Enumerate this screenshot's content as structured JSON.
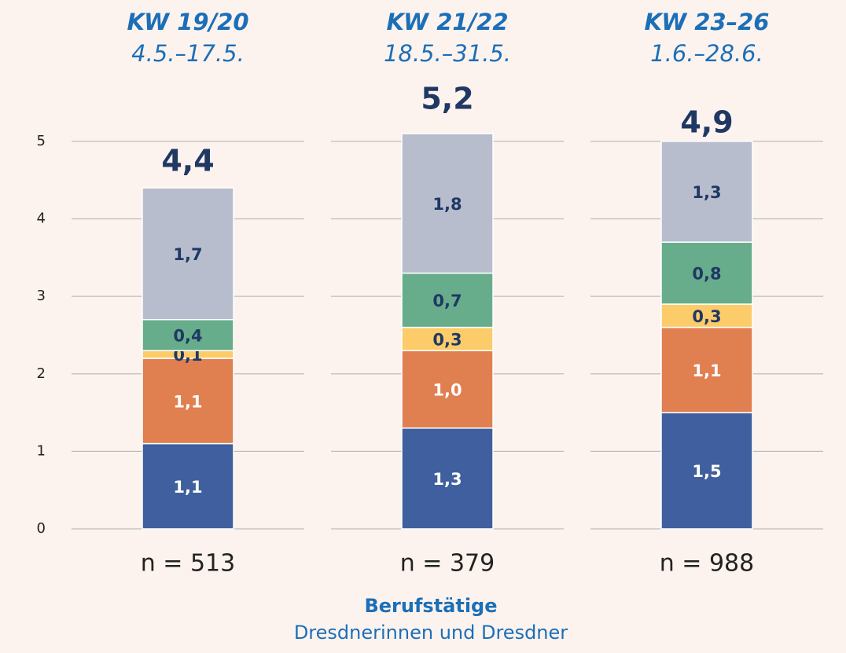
{
  "chart_data": {
    "type": "stacked_bar",
    "title": "Berufstätige",
    "subtitle": "Dresdnerinnen und Dresdner",
    "categories": [
      "KW 19/20",
      "KW 21/22",
      "KW 23–26"
    ],
    "category_dates": [
      "4.5.–17.5.",
      "18.5.–31.5.",
      "1.6.–28.6."
    ],
    "n_labels": [
      "n = 513",
      "n = 379",
      "n = 988"
    ],
    "totals": [
      4.4,
      5.2,
      4.9
    ],
    "totals_labels": [
      "4,4",
      "5,2",
      "4,9"
    ],
    "series": [
      {
        "color": "#3f5f9e",
        "label_color": "#ffffff",
        "values": [
          1.1,
          1.3,
          1.5
        ],
        "value_labels": [
          "1,1",
          "1,3",
          "1,5"
        ]
      },
      {
        "color": "#e07f4f",
        "label_color": "#ffffff",
        "values": [
          1.1,
          1.0,
          1.1
        ],
        "value_labels": [
          "1,1",
          "1,0",
          "1,1"
        ]
      },
      {
        "color": "#fdcc6a",
        "label_color": "#1f3864",
        "values": [
          0.1,
          0.3,
          0.3
        ],
        "value_labels": [
          "0,1",
          "0,3",
          "0,3"
        ]
      },
      {
        "color": "#67ad8c",
        "label_color": "#1f3864",
        "values": [
          0.4,
          0.7,
          0.8
        ],
        "value_labels": [
          "0,4",
          "0,7",
          "0,8"
        ]
      },
      {
        "color": "#b7bdcd",
        "label_color": "#1f3864",
        "values": [
          1.7,
          1.8,
          1.3
        ],
        "value_labels": [
          "1,7",
          "1,8",
          "1,3"
        ]
      }
    ],
    "ylim": [
      0,
      5.5
    ],
    "yticks": [
      0,
      1,
      2,
      3,
      4,
      5
    ],
    "grid": true
  }
}
